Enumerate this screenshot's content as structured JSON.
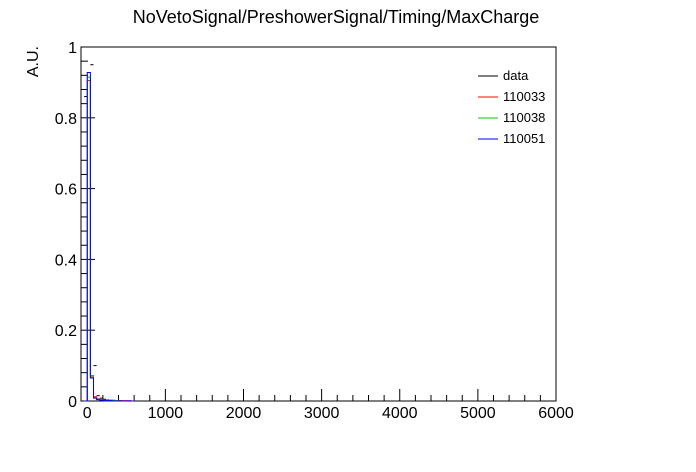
{
  "chart_data": {
    "type": "histogram",
    "title": "NoVetoSignal/PreshowerSignal/Timing/MaxCharge",
    "xlabel": "",
    "ylabel": "A.U.",
    "xlim": [
      -80,
      6000
    ],
    "ylim": [
      0,
      1
    ],
    "grid": false,
    "legend_position": "top-right",
    "x_ticks": [
      0,
      1000,
      2000,
      3000,
      4000,
      5000,
      6000
    ],
    "x_tick_labels": [
      "0",
      "1000",
      "2000",
      "3000",
      "4000",
      "5000",
      "6000"
    ],
    "y_ticks": [
      0,
      0.2,
      0.4,
      0.6,
      0.8,
      1
    ],
    "y_tick_labels": [
      "0",
      "0.2",
      "0.4",
      "0.6",
      "0.8",
      "1"
    ],
    "bin_edges": [
      -40,
      0,
      40,
      80,
      120,
      160,
      200,
      240,
      280,
      320,
      360,
      400,
      440,
      480,
      520,
      560,
      600
    ],
    "series": [
      {
        "name": "data",
        "color": "#000000",
        "style": "markers",
        "values": [
          0.86,
          1.0,
          0.95,
          0.1,
          0.015,
          0.008,
          0.005,
          0.003,
          0.002,
          0.002,
          0.001,
          0.001,
          0.0,
          0.0,
          0.0,
          0.0
        ]
      },
      {
        "name": "110033",
        "color": "#ff0000",
        "style": "step",
        "values": [
          0.0,
          0.905,
          0.068,
          0.012,
          0.006,
          0.004,
          0.003,
          0.002,
          0.002,
          0.001,
          0.001,
          0.001,
          0.001,
          0.001,
          0.001,
          0.0
        ]
      },
      {
        "name": "110038",
        "color": "#00cc00",
        "style": "step",
        "values": [
          0.0,
          0.915,
          0.072,
          0.01,
          0.005,
          0.003,
          0.002,
          0.001,
          0.001,
          0.001,
          0.001,
          0.0,
          0.0,
          0.0,
          0.0,
          0.0
        ]
      },
      {
        "name": "110051",
        "color": "#0000ff",
        "style": "step",
        "values": [
          0.0,
          0.928,
          0.065,
          0.008,
          0.004,
          0.002,
          0.001,
          0.001,
          0.001,
          0.0,
          0.0,
          0.0,
          0.0,
          0.0,
          0.0,
          0.0
        ]
      }
    ]
  }
}
